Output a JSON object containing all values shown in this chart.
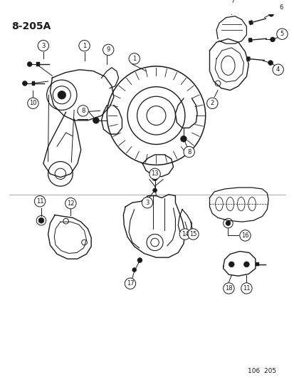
{
  "title": "8-205A",
  "page_ref": "106  205",
  "bg_color": "#ffffff",
  "line_color": "#1a1a1a",
  "figsize": [
    4.14,
    5.33
  ],
  "dpi": 100
}
